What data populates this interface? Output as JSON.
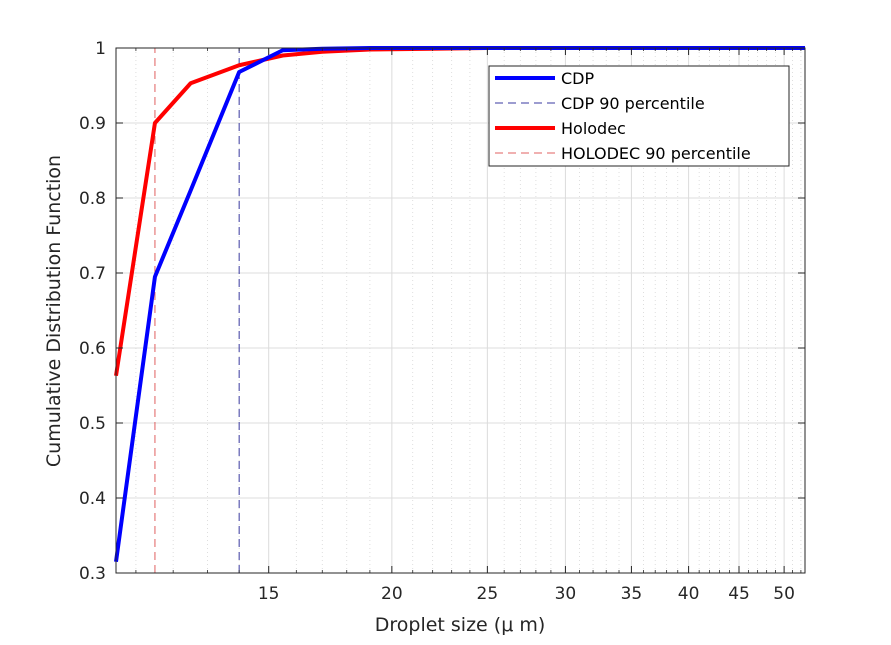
{
  "chart_data": {
    "type": "line",
    "x_scale": "log",
    "xlabel": "Droplet size (μ m)",
    "ylabel": "Cumulative Distribution Function",
    "xlim": [
      10.5,
      52.5
    ],
    "ylim": [
      0.3,
      1
    ],
    "grid": true,
    "minor_grid": true,
    "legend_position": "top-right",
    "x_ticks": [
      15,
      20,
      25,
      30,
      35,
      40,
      45,
      50
    ],
    "x_tick_labels": [
      "15",
      "20",
      "25",
      "30",
      "35",
      "40",
      "45",
      "50"
    ],
    "y_ticks": [
      0.3,
      0.4,
      0.5,
      0.6,
      0.7,
      0.8,
      0.9,
      1
    ],
    "y_tick_labels": [
      "0.3",
      "0.4",
      "0.5",
      "0.6",
      "0.7",
      "0.8",
      "0.9",
      "1"
    ],
    "series": [
      {
        "name": "CDP",
        "style": "solid",
        "color": "#0000ff",
        "x": [
          10.5,
          11.5,
          12.5,
          14,
          15.5,
          17,
          19,
          22,
          25,
          30,
          40,
          52.5
        ],
        "y": [
          0.315,
          0.695,
          0.81,
          0.968,
          0.997,
          0.999,
          1.0,
          1.0,
          1.0,
          1.0,
          1.0,
          1.0
        ]
      },
      {
        "name": "CDP 90 percentile",
        "style": "dashed",
        "color": "#3a3aa0",
        "x": [
          14.0,
          14.0
        ],
        "y": [
          0.3,
          1.0
        ]
      },
      {
        "name": "Holodec",
        "style": "solid",
        "color": "#ff0000",
        "x": [
          10.5,
          11.5,
          12.5,
          14,
          15.5,
          17,
          19,
          22,
          25,
          30,
          40,
          52.5
        ],
        "y": [
          0.563,
          0.9,
          0.953,
          0.977,
          0.99,
          0.995,
          0.998,
          0.999,
          1.0,
          1.0,
          1.0,
          1.0
        ]
      },
      {
        "name": "HOLODEC 90 percentile",
        "style": "dashed",
        "color": "#e06060",
        "x": [
          11.5,
          11.5
        ],
        "y": [
          0.3,
          1.0
        ]
      }
    ]
  }
}
